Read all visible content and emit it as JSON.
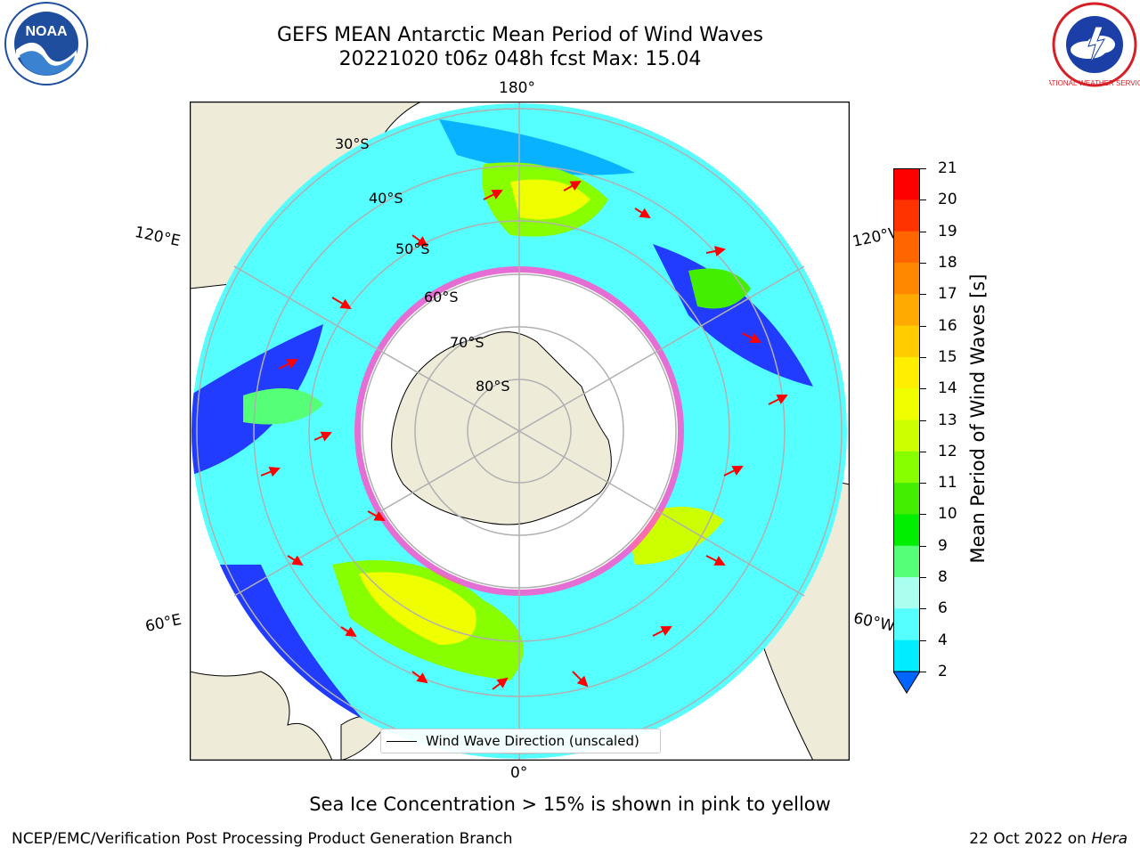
{
  "title": {
    "line1": "GEFS MEAN Antarctic Mean Period of Wind Waves",
    "line2": "20221020 t06z 048h fcst   Max: 15.04"
  },
  "map": {
    "projection": "south-polar-stereographic",
    "lon_labels": {
      "top": "180°",
      "bottom": "0°",
      "left_upper": "120°E",
      "left_lower": "60°E",
      "right_upper": "120°W",
      "right_lower": "60°W"
    },
    "lat_labels": [
      "30°S",
      "40°S",
      "50°S",
      "60°S",
      "70°S",
      "80°S"
    ],
    "legend": "Wind Wave Direction (unscaled)",
    "colors": {
      "land": "#eeebd9",
      "ocean_low": "#1a1aff",
      "ice_edge": "#ff55cc"
    }
  },
  "colorbar": {
    "label": "Mean Period of Wind Waves [s]",
    "ticks": [
      "21",
      "20",
      "19",
      "18",
      "17",
      "16",
      "15",
      "14",
      "13",
      "12",
      "11",
      "10",
      "9",
      "8",
      "6",
      "4",
      "2"
    ],
    "colors": [
      "#ff0000",
      "#ff3300",
      "#ff6600",
      "#ff8800",
      "#ffaa00",
      "#ffcc00",
      "#ffee00",
      "#f0ff00",
      "#ccff00",
      "#88ff00",
      "#44ee00",
      "#00ee00",
      "#55ff77",
      "#aaffee",
      "#55ffff",
      "#00eeff",
      "#00aaff",
      "#0066ff"
    ]
  },
  "caption": "Sea Ice Concentration > 15% is shown in pink to yellow",
  "footer": {
    "left": "NCEP/EMC/Verification Post Processing Product Generation Branch",
    "right_prefix": "22 Oct 2022 on ",
    "right_system": "Hera"
  },
  "logos": {
    "noaa_text": "NOAA",
    "nws_text": "NATIONAL WEATHER SERVICE"
  }
}
